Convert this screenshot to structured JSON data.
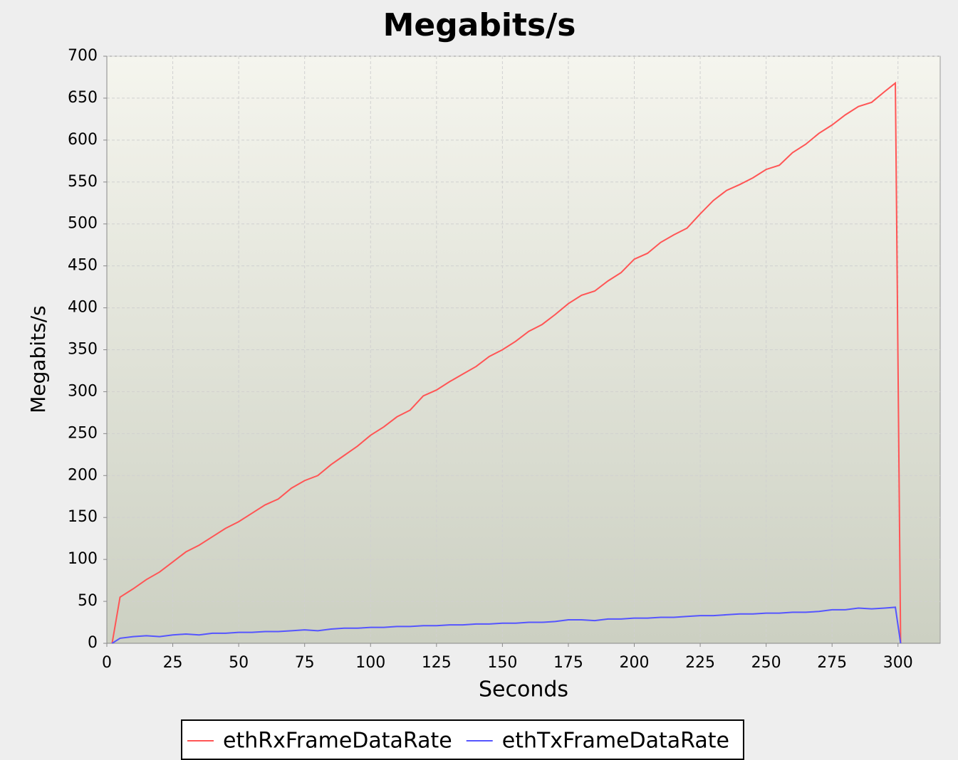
{
  "chart_data": {
    "type": "line",
    "title": "Megabits/s",
    "x_label": "Seconds",
    "y_label": "Megabits/s",
    "x": [
      2,
      5,
      10,
      15,
      20,
      25,
      30,
      35,
      40,
      45,
      50,
      55,
      60,
      65,
      70,
      75,
      80,
      85,
      90,
      95,
      100,
      105,
      110,
      115,
      120,
      125,
      130,
      135,
      140,
      145,
      150,
      155,
      160,
      165,
      170,
      175,
      180,
      185,
      190,
      195,
      200,
      205,
      210,
      215,
      220,
      225,
      230,
      235,
      240,
      245,
      250,
      255,
      260,
      265,
      270,
      275,
      280,
      285,
      290,
      295,
      299,
      301
    ],
    "series": [
      {
        "name": "ethRxFrameDataRate",
        "color": "#ff5555",
        "values": [
          0,
          55,
          65,
          76,
          85,
          97,
          109,
          117,
          127,
          137,
          145,
          155,
          165,
          172,
          185,
          194,
          200,
          213,
          224,
          235,
          248,
          258,
          270,
          278,
          295,
          302,
          312,
          321,
          330,
          342,
          350,
          360,
          372,
          380,
          392,
          405,
          415,
          420,
          432,
          442,
          458,
          465,
          478,
          487,
          495,
          512,
          528,
          540,
          547,
          555,
          565,
          570,
          585,
          595,
          608,
          618,
          630,
          640,
          645,
          658,
          668,
          0
        ]
      },
      {
        "name": "ethTxFrameDataRate",
        "color": "#5555ff",
        "values": [
          0,
          6,
          8,
          9,
          8,
          10,
          11,
          10,
          12,
          12,
          13,
          13,
          14,
          14,
          15,
          16,
          15,
          17,
          18,
          18,
          19,
          19,
          20,
          20,
          21,
          21,
          22,
          22,
          23,
          23,
          24,
          24,
          25,
          25,
          26,
          28,
          28,
          27,
          29,
          29,
          30,
          30,
          31,
          31,
          32,
          33,
          33,
          34,
          35,
          35,
          36,
          36,
          37,
          37,
          38,
          40,
          40,
          42,
          41,
          42,
          43,
          0
        ]
      }
    ],
    "xlim": [
      0,
      316
    ],
    "xticks": [
      0,
      25,
      50,
      75,
      100,
      125,
      150,
      175,
      200,
      225,
      250,
      275,
      300
    ],
    "ylim": [
      0,
      700
    ],
    "yticks": [
      0,
      50,
      100,
      150,
      200,
      250,
      300,
      350,
      400,
      450,
      500,
      550,
      600,
      650,
      700
    ],
    "grid": true,
    "legend": "bottom"
  }
}
